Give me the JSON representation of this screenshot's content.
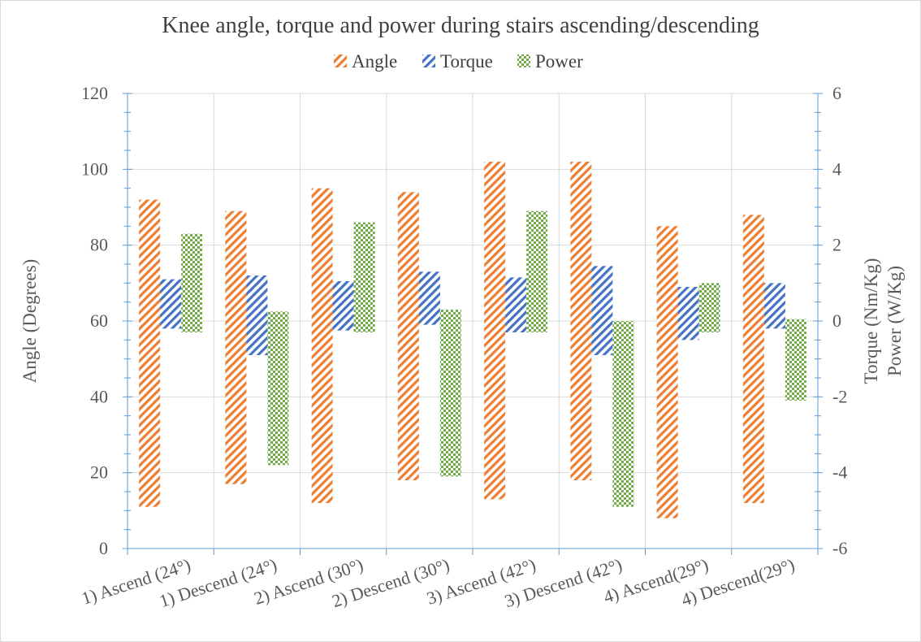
{
  "chart_data": {
    "type": "bar",
    "subtype": "floating-range",
    "title": "Knee angle, torque and power during stairs ascending/descending",
    "categories": [
      "1) Ascend (24°)",
      "1) Descend (24°)",
      "2) Ascend (30°)",
      "2) Descend (30°)",
      "3) Ascend (42°)",
      "3) Descend (42°)",
      "4) Ascend(29°)",
      "4) Descend(29°)"
    ],
    "series": [
      {
        "name": "Angle",
        "axis": "left",
        "color": "#ED7D31",
        "pattern": "diagonal-stripes",
        "low": [
          11,
          17,
          12,
          18,
          13,
          18,
          8,
          12
        ],
        "high": [
          92,
          89,
          95,
          94,
          102,
          102,
          85,
          88
        ]
      },
      {
        "name": "Torque",
        "axis": "right",
        "color": "#4472C4",
        "pattern": "diagonal-stripes",
        "low": [
          -0.2,
          -0.9,
          -0.25,
          -0.1,
          -0.3,
          -0.9,
          -0.5,
          -0.2
        ],
        "high": [
          1.1,
          1.2,
          1.05,
          1.3,
          1.15,
          1.45,
          0.9,
          1.0
        ]
      },
      {
        "name": "Power",
        "axis": "right",
        "color": "#70AD47",
        "pattern": "checkerboard",
        "low": [
          -0.3,
          -3.8,
          -0.3,
          -4.1,
          -0.3,
          -4.9,
          -0.3,
          -2.1
        ],
        "high": [
          2.3,
          0.25,
          2.6,
          0.3,
          2.9,
          0.0,
          1.0,
          0.05
        ]
      }
    ],
    "y_left": {
      "label": "Angle (Degrees)",
      "range": [
        0,
        120
      ],
      "ticks": [
        "0",
        "20",
        "40",
        "60",
        "80",
        "100",
        "120"
      ]
    },
    "y_right": {
      "label_line1": "Torque (Nm/Kg)",
      "label_line2": "Power (W/Kg)",
      "range": [
        -6,
        6
      ],
      "ticks": [
        "-6",
        "-4",
        "-2",
        "0",
        "2",
        "4",
        "6"
      ]
    },
    "legend_position": "top",
    "grid": true
  }
}
